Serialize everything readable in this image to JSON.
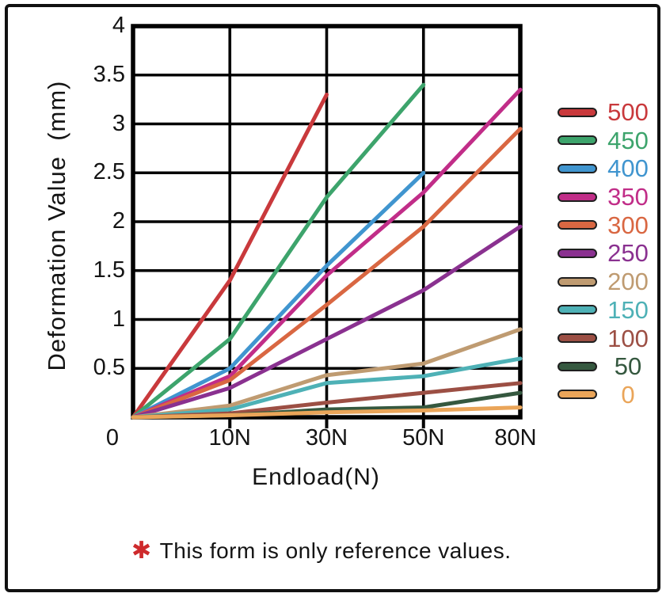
{
  "footnote": {
    "asterisk": "✱",
    "asterisk_color": "#ce2a2c",
    "text": "This form is only reference values."
  },
  "chart_data": {
    "type": "line",
    "title": "",
    "xlabel": "Endload(N)",
    "ylabel": "Deformation Value  (mm)",
    "x_categories": [
      "0",
      "10N",
      "30N",
      "50N",
      "80N"
    ],
    "ytick_labels": [
      "4",
      "3.5",
      "3",
      "2.5",
      "2",
      "1.5",
      "1",
      "0.5"
    ],
    "ylim": [
      0,
      4
    ],
    "ytick_step": 0.5,
    "grid": true,
    "grid_color": "#000000",
    "legend_position": "right",
    "series": [
      {
        "name": "500",
        "color": "#c9393c",
        "values": [
          0,
          1.4,
          3.3,
          null,
          null
        ]
      },
      {
        "name": "450",
        "color": "#3da46c",
        "values": [
          0,
          0.8,
          2.25,
          3.4,
          null
        ]
      },
      {
        "name": "400",
        "color": "#4095cf",
        "values": [
          0,
          0.5,
          1.55,
          2.5,
          null
        ]
      },
      {
        "name": "350",
        "color": "#c12d88",
        "values": [
          0,
          0.42,
          1.45,
          2.3,
          3.35
        ]
      },
      {
        "name": "300",
        "color": "#d96742",
        "values": [
          0,
          0.38,
          1.15,
          1.95,
          2.95
        ]
      },
      {
        "name": "250",
        "color": "#8a3190",
        "values": [
          0,
          0.3,
          0.8,
          1.3,
          1.95
        ]
      },
      {
        "name": "200",
        "color": "#bf9b71",
        "values": [
          0,
          0.12,
          0.43,
          0.55,
          0.9
        ]
      },
      {
        "name": "150",
        "color": "#4eb1b6",
        "values": [
          0,
          0.08,
          0.35,
          0.42,
          0.6
        ]
      },
      {
        "name": "100",
        "color": "#9c4f44",
        "values": [
          0,
          0.04,
          0.15,
          0.25,
          0.35
        ]
      },
      {
        "name": "50",
        "color": "#35583f",
        "values": [
          0,
          0.02,
          0.08,
          0.1,
          0.25
        ]
      },
      {
        "name": "0",
        "color": "#eaa559",
        "values": [
          0,
          0.02,
          0.05,
          0.07,
          0.1
        ]
      }
    ]
  }
}
